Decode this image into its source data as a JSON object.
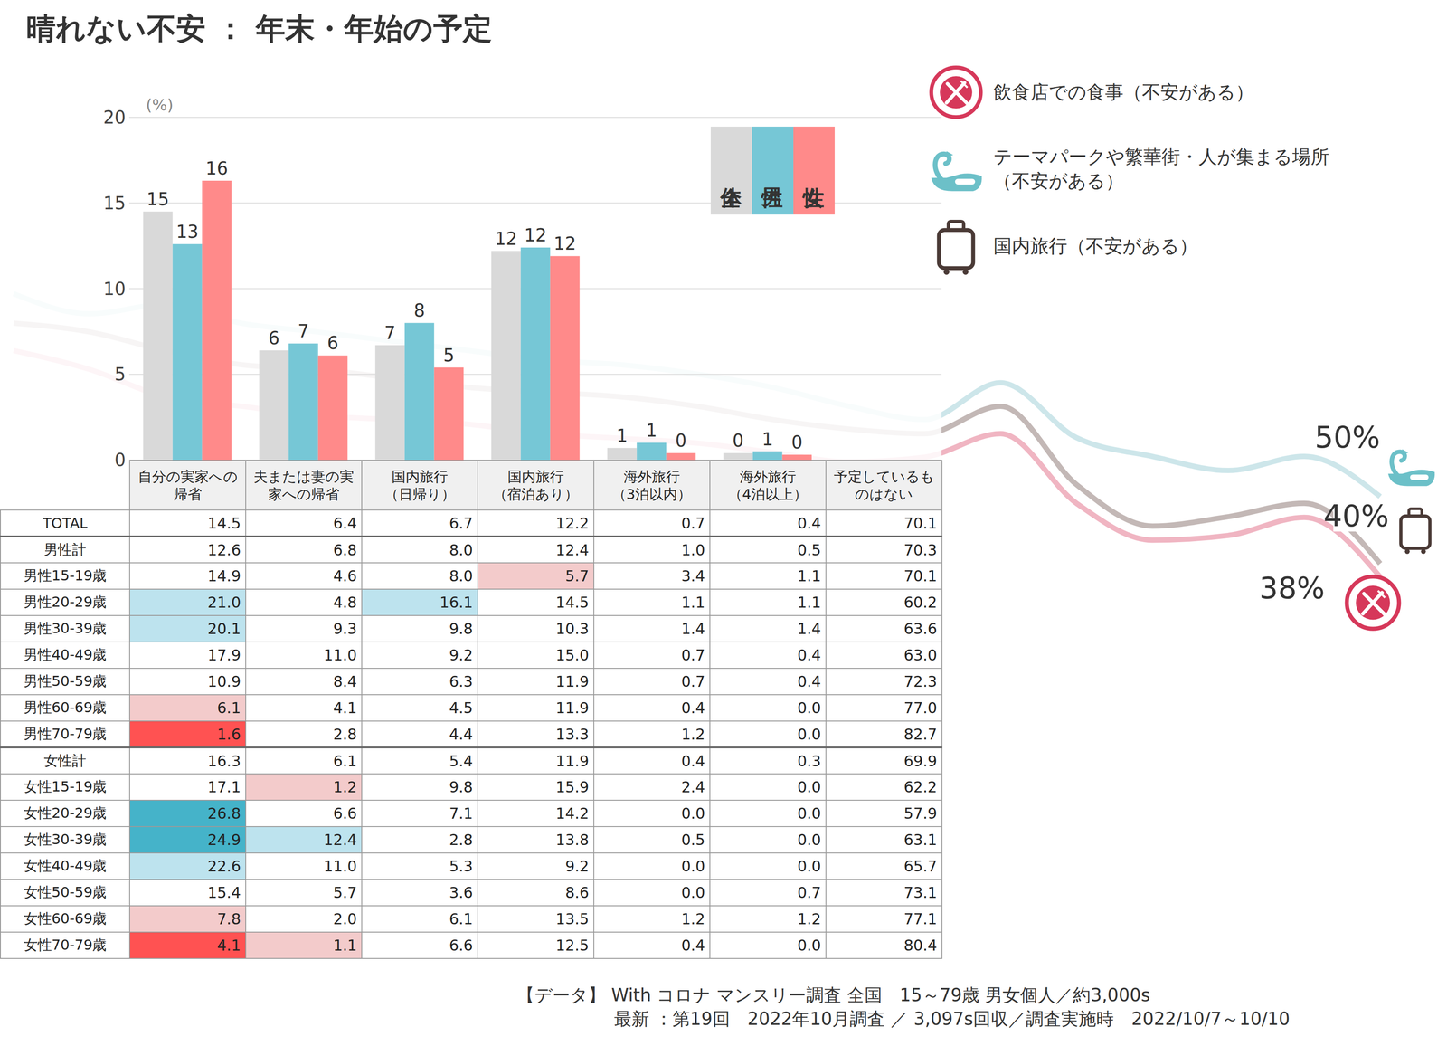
{
  "title": "晴れない不安 ： 年末・年始の予定",
  "chart_data": [
    {
      "type": "bar",
      "ylabel": "(%)",
      "categories": [
        "自分の実家への帰省",
        "夫または妻の実家への帰省",
        "国内旅行（日帰り）",
        "国内旅行（宿泊あり）",
        "海外旅行（3泊以内）",
        "海外旅行（4泊以上）",
        "予定しているものはない"
      ],
      "series": [
        {
          "name": "全体",
          "color": "#d9d9d9",
          "values": [
            14.5,
            6.4,
            6.7,
            12.2,
            0.7,
            0.4,
            null
          ],
          "value_labels": [
            "15",
            "6",
            "7",
            "12",
            "1",
            "0",
            null
          ]
        },
        {
          "name": "男性",
          "color": "#76c7d6",
          "values": [
            12.6,
            6.8,
            8.0,
            12.4,
            1.0,
            0.5,
            null
          ],
          "value_labels": [
            "13",
            "7",
            "8",
            "12",
            "1",
            "1",
            null
          ]
        },
        {
          "name": "女性",
          "color": "#ff8a8a",
          "values": [
            16.3,
            6.1,
            5.4,
            11.9,
            0.4,
            0.3,
            null
          ],
          "value_labels": [
            "16",
            "6",
            "5",
            "12",
            "0",
            "0",
            null
          ]
        }
      ],
      "ylim": [
        0,
        20
      ],
      "yticks": [
        0,
        5,
        10,
        15,
        20
      ],
      "grid": true,
      "data_labels": true,
      "legend": "upper right",
      "tick_labels": "y"
    },
    {
      "type": "line",
      "categories": [
        null,
        null,
        null,
        null,
        null,
        null,
        null,
        null,
        null,
        null,
        null,
        null,
        null,
        null,
        null,
        null,
        null,
        null,
        null
      ],
      "series": [
        {
          "name": "飲食店での食事（不安がある）",
          "color": "#f0b5c2",
          "values": [
            71.8,
            69.0,
            64.9,
            63.5,
            62.1,
            61.5,
            60.8,
            59.4,
            58.7,
            58.0,
            56.6,
            55.2,
            55.9,
            59.4,
            49.0,
            43.5,
            44.2,
            46.9,
            38.0
          ],
          "value_labels": [
            null,
            null,
            null,
            null,
            null,
            null,
            null,
            null,
            null,
            null,
            null,
            null,
            null,
            null,
            null,
            null,
            null,
            null,
            "38%"
          ]
        },
        {
          "name": "テーマパークや繁華街・人が集まる場所（不安がある）",
          "color": "#cde6ea",
          "values": [
            80.3,
            77.3,
            78.7,
            75.9,
            74.6,
            73.2,
            71.8,
            70.4,
            69.7,
            68.3,
            66.3,
            63.5,
            61.5,
            67.0,
            58.8,
            56.0,
            53.9,
            56.0,
            50.0
          ],
          "value_labels": [
            null,
            null,
            null,
            null,
            null,
            null,
            null,
            null,
            null,
            null,
            null,
            null,
            null,
            null,
            null,
            null,
            null,
            null,
            "50%"
          ]
        },
        {
          "name": "国内旅行（不安がある）",
          "color": "#c3b8b6",
          "values": [
            75.9,
            74.6,
            71.8,
            69.7,
            69.0,
            67.7,
            66.3,
            65.6,
            64.9,
            63.5,
            61.5,
            60.1,
            59.4,
            63.5,
            51.8,
            45.6,
            47.0,
            49.0,
            40.0
          ],
          "value_labels": [
            null,
            null,
            null,
            null,
            null,
            null,
            null,
            null,
            null,
            null,
            null,
            null,
            null,
            null,
            null,
            null,
            null,
            null,
            "40%"
          ]
        }
      ],
      "ylim": [
        0,
        100
      ],
      "grid": false,
      "tick_labels": false,
      "legend": "upper right",
      "data_labels": true
    }
  ],
  "table": {
    "rows": [
      {
        "label": "TOTAL",
        "values": [
          "14.5",
          "6.4",
          "6.7",
          "12.2",
          "0.7",
          "0.4",
          "70.1"
        ],
        "colors": [
          null,
          null,
          null,
          null,
          null,
          null,
          null
        ]
      },
      {
        "label": "男性計",
        "values": [
          "12.6",
          "6.8",
          "8.0",
          "12.4",
          "1.0",
          "0.5",
          "70.3"
        ],
        "colors": [
          null,
          null,
          null,
          null,
          null,
          null,
          null
        ]
      },
      {
        "label": "男性15-19歳",
        "values": [
          "14.9",
          "4.6",
          "8.0",
          "5.7",
          "3.4",
          "1.1",
          "70.1"
        ],
        "colors": [
          null,
          null,
          null,
          "#f3cbcb",
          null,
          null,
          null
        ]
      },
      {
        "label": "男性20-29歳",
        "values": [
          "21.0",
          "4.8",
          "16.1",
          "14.5",
          "1.1",
          "1.1",
          "60.2"
        ],
        "colors": [
          "#bde3ee",
          null,
          "#bde3ee",
          null,
          null,
          null,
          null
        ]
      },
      {
        "label": "男性30-39歳",
        "values": [
          "20.1",
          "9.3",
          "9.8",
          "10.3",
          "1.4",
          "1.4",
          "63.6"
        ],
        "colors": [
          "#bde3ee",
          null,
          null,
          null,
          null,
          null,
          null
        ]
      },
      {
        "label": "男性40-49歳",
        "values": [
          "17.9",
          "11.0",
          "9.2",
          "15.0",
          "0.7",
          "0.4",
          "63.0"
        ],
        "colors": [
          null,
          null,
          null,
          null,
          null,
          null,
          null
        ]
      },
      {
        "label": "男性50-59歳",
        "values": [
          "10.9",
          "8.4",
          "6.3",
          "11.9",
          "0.7",
          "0.4",
          "72.3"
        ],
        "colors": [
          null,
          null,
          null,
          null,
          null,
          null,
          null
        ]
      },
      {
        "label": "男性60-69歳",
        "values": [
          "6.1",
          "4.1",
          "4.5",
          "11.9",
          "0.4",
          "0.0",
          "77.0"
        ],
        "colors": [
          "#f3cbcb",
          null,
          null,
          null,
          null,
          null,
          null
        ]
      },
      {
        "label": "男性70-79歳",
        "values": [
          "1.6",
          "2.8",
          "4.4",
          "13.3",
          "1.2",
          "0.0",
          "82.7"
        ],
        "colors": [
          "#ff5252",
          null,
          null,
          null,
          null,
          null,
          null
        ]
      },
      {
        "label": "女性計",
        "values": [
          "16.3",
          "6.1",
          "5.4",
          "11.9",
          "0.4",
          "0.3",
          "69.9"
        ],
        "colors": [
          null,
          null,
          null,
          null,
          null,
          null,
          null
        ]
      },
      {
        "label": "女性15-19歳",
        "values": [
          "17.1",
          "1.2",
          "9.8",
          "15.9",
          "2.4",
          "0.0",
          "62.2"
        ],
        "colors": [
          null,
          "#f3cbcb",
          null,
          null,
          null,
          null,
          null
        ]
      },
      {
        "label": "女性20-29歳",
        "values": [
          "26.8",
          "6.6",
          "7.1",
          "14.2",
          "0.0",
          "0.0",
          "57.9"
        ],
        "colors": [
          "#45b3c9",
          null,
          null,
          null,
          null,
          null,
          null
        ]
      },
      {
        "label": "女性30-39歳",
        "values": [
          "24.9",
          "12.4",
          "2.8",
          "13.8",
          "0.5",
          "0.0",
          "63.1"
        ],
        "colors": [
          "#45b3c9",
          "#bde3ee",
          null,
          null,
          null,
          null,
          null
        ]
      },
      {
        "label": "女性40-49歳",
        "values": [
          "22.6",
          "11.0",
          "5.3",
          "9.2",
          "0.0",
          "0.0",
          "65.7"
        ],
        "colors": [
          "#bde3ee",
          null,
          null,
          null,
          null,
          null,
          null
        ]
      },
      {
        "label": "女性50-59歳",
        "values": [
          "15.4",
          "5.7",
          "3.6",
          "8.6",
          "0.0",
          "0.7",
          "73.1"
        ],
        "colors": [
          null,
          null,
          null,
          null,
          null,
          null,
          null
        ]
      },
      {
        "label": "女性60-69歳",
        "values": [
          "7.8",
          "2.0",
          "6.1",
          "13.5",
          "1.2",
          "1.2",
          "77.1"
        ],
        "colors": [
          "#f3cbcb",
          null,
          null,
          null,
          null,
          null,
          null
        ]
      },
      {
        "label": "女性70-79歳",
        "values": [
          "4.1",
          "1.1",
          "6.6",
          "12.5",
          "0.4",
          "0.0",
          "80.4"
        ],
        "colors": [
          "#ff5252",
          "#f3cbcb",
          null,
          null,
          null,
          null,
          null
        ]
      }
    ]
  },
  "source": [
    "【データ】 With コロナ マンスリー調査 全国　15～79歳 男女個人／約3,000s",
    "最新 ：第19回　2022年10月調査 ／ 3,097s回収／調査実施時　2022/10/7～10/10"
  ]
}
